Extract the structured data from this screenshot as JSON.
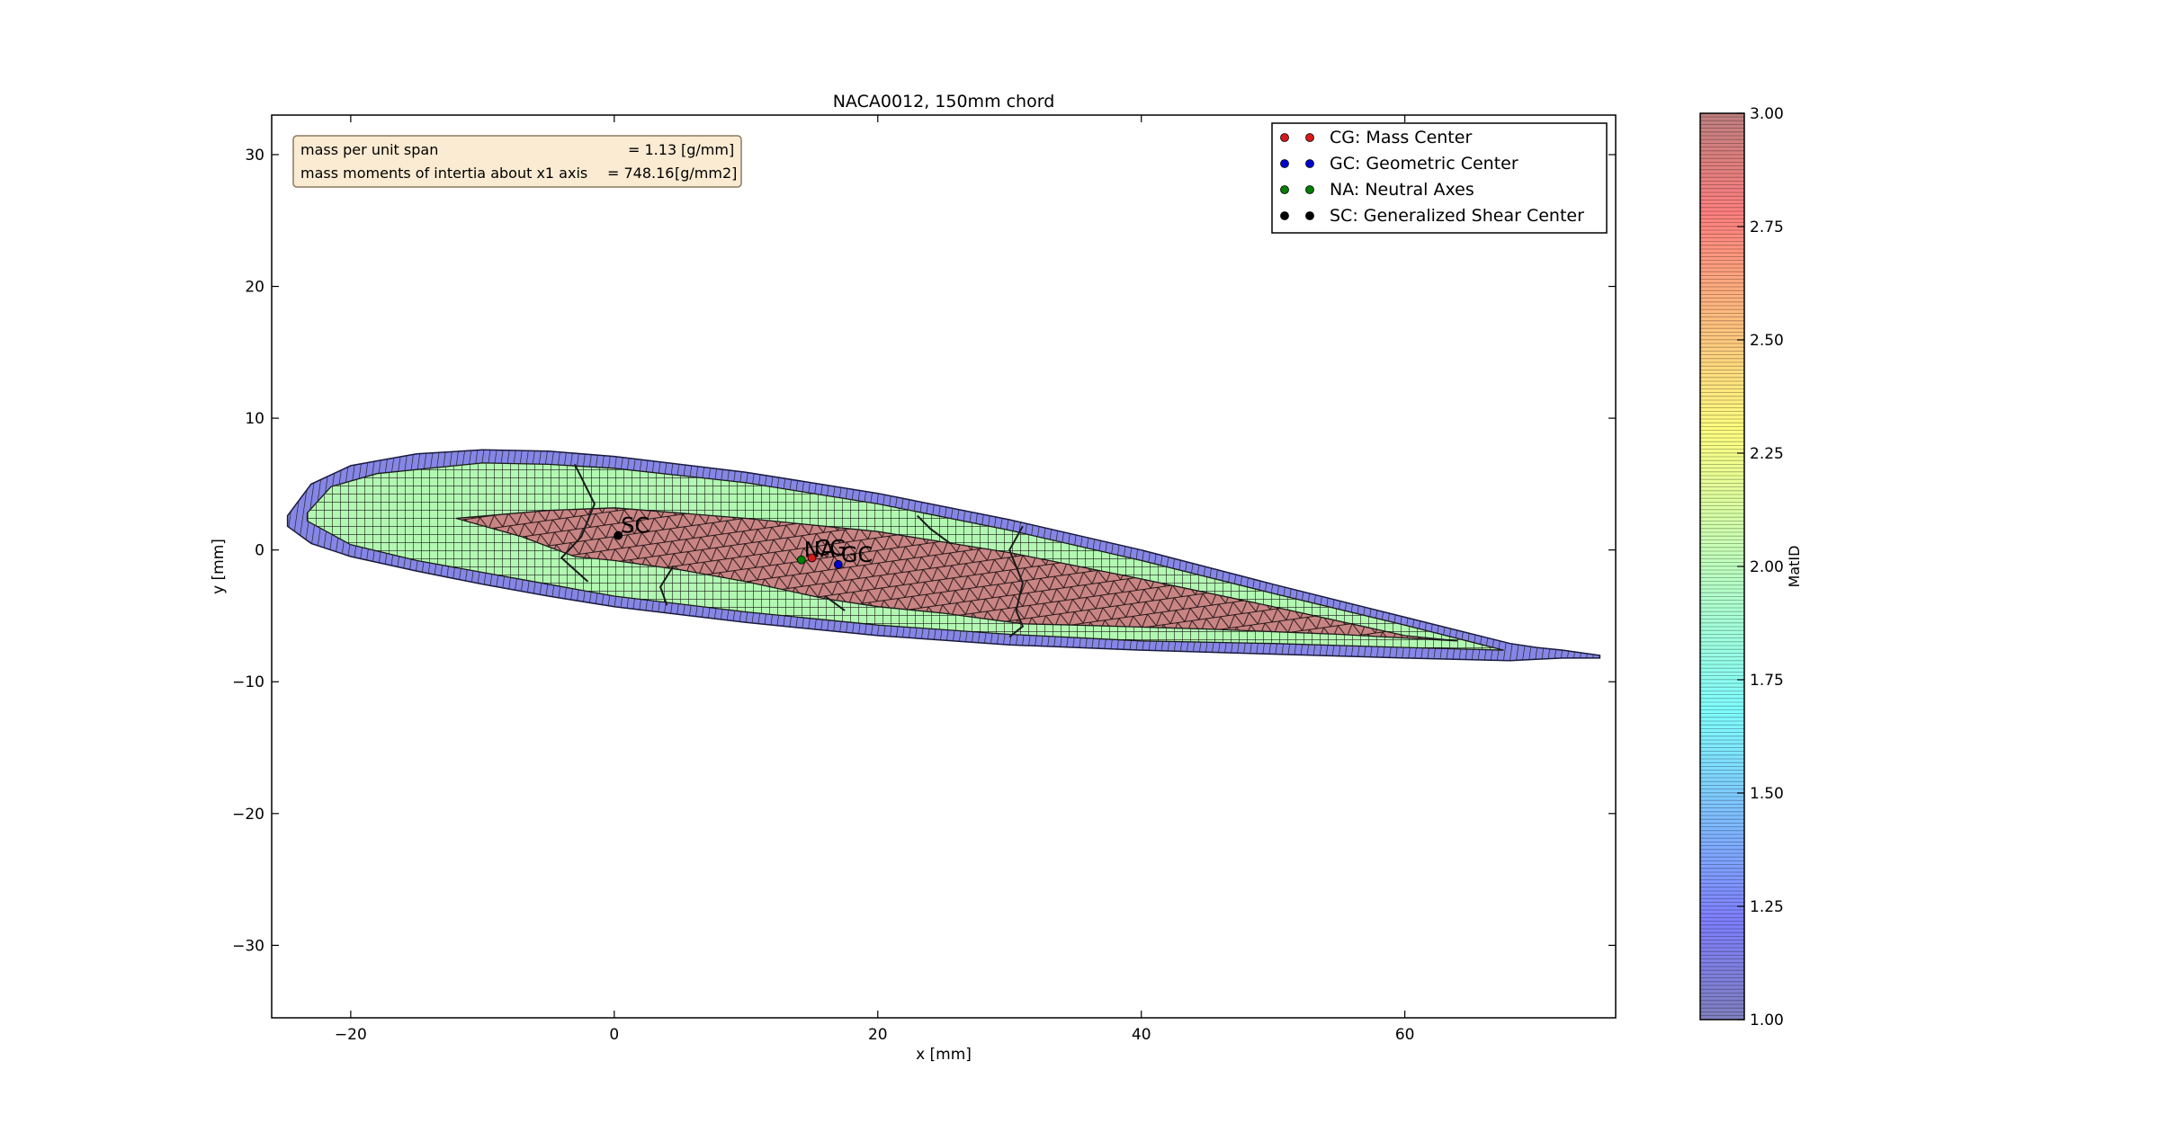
{
  "chart_data": {
    "type": "mesh",
    "title": "NACA0012, 150mm chord",
    "xlabel": "x [mm]",
    "ylabel": "y [mm]",
    "xlim": [
      -26,
      76
    ],
    "ylim": [
      -35.5,
      33
    ],
    "xticks": [
      -20,
      0,
      20,
      40,
      60
    ],
    "yticks": [
      -30,
      -20,
      -10,
      0,
      10,
      20,
      30
    ],
    "xtick_labels": [
      "−20",
      "0",
      "20",
      "40",
      "60"
    ],
    "ytick_labels": [
      "−30",
      "−20",
      "−10",
      "0",
      "10",
      "20",
      "30"
    ],
    "grid": false,
    "regions": {
      "outer_skin": {
        "matid": 1.0,
        "upper": [
          [
            -24.8,
            2.6
          ],
          [
            -23,
            5
          ],
          [
            -20,
            6.4
          ],
          [
            -15,
            7.3
          ],
          [
            -10,
            7.6
          ],
          [
            -5,
            7.5
          ],
          [
            0,
            7.1
          ],
          [
            10,
            5.9
          ],
          [
            20,
            4.3
          ],
          [
            30,
            2.3
          ],
          [
            40,
            0
          ],
          [
            50,
            -2.6
          ],
          [
            60,
            -5.1
          ],
          [
            68,
            -7.1
          ],
          [
            70,
            -7.4
          ],
          [
            72,
            -7.6
          ],
          [
            74.8,
            -8
          ]
        ],
        "lower": [
          [
            74.8,
            -8.2
          ],
          [
            72,
            -8.2
          ],
          [
            70,
            -8.3
          ],
          [
            68,
            -8.4
          ],
          [
            60,
            -8.2
          ],
          [
            50,
            -7.9
          ],
          [
            40,
            -7.6
          ],
          [
            30,
            -7.2
          ],
          [
            20,
            -6.5
          ],
          [
            10,
            -5.5
          ],
          [
            0,
            -4.3
          ],
          [
            -5,
            -3.5
          ],
          [
            -10,
            -2.6
          ],
          [
            -15,
            -1.6
          ],
          [
            -20,
            -0.5
          ],
          [
            -23,
            0.5
          ],
          [
            -24.8,
            1.8
          ]
        ]
      },
      "core": {
        "matid": 2.0,
        "upper": [
          [
            -23.3,
            2.8
          ],
          [
            -21.5,
            4.8
          ],
          [
            -18,
            5.8
          ],
          [
            -10,
            6.6
          ],
          [
            -5,
            6.5
          ],
          [
            0,
            6.2
          ],
          [
            10,
            5.1
          ],
          [
            20,
            3.5
          ],
          [
            30,
            1.5
          ],
          [
            40,
            -0.8
          ],
          [
            50,
            -3.3
          ],
          [
            60,
            -5.7
          ],
          [
            67.5,
            -7.6
          ]
        ],
        "lower": [
          [
            67.5,
            -7.6
          ],
          [
            60,
            -7.4
          ],
          [
            50,
            -7.1
          ],
          [
            40,
            -6.9
          ],
          [
            30,
            -6.4
          ],
          [
            20,
            -5.7
          ],
          [
            10,
            -4.7
          ],
          [
            0,
            -3.5
          ],
          [
            -5,
            -2.6
          ],
          [
            -10,
            -1.7
          ],
          [
            -15,
            -0.8
          ],
          [
            -20,
            0.4
          ],
          [
            -23.3,
            2.2
          ]
        ]
      },
      "spar": {
        "matid": 3.0,
        "upper": [
          [
            -12,
            2.4
          ],
          [
            -5,
            3
          ],
          [
            0,
            3.2
          ],
          [
            10,
            2.4
          ],
          [
            20,
            1.4
          ],
          [
            30,
            -0.2
          ],
          [
            40,
            -2.2
          ],
          [
            50,
            -4.3
          ],
          [
            60,
            -6.5
          ],
          [
            64,
            -6.9
          ]
        ],
        "lower": [
          [
            64,
            -6.9
          ],
          [
            55,
            -6.4
          ],
          [
            45,
            -6
          ],
          [
            35,
            -5.7
          ],
          [
            31,
            -5.6
          ],
          [
            25,
            -4.8
          ],
          [
            20,
            -4.3
          ],
          [
            16,
            -3.7
          ],
          [
            10,
            -2.4
          ],
          [
            5,
            -1.5
          ],
          [
            0,
            -0.8
          ],
          [
            -3,
            -0.5
          ],
          [
            -7,
            1
          ],
          [
            -12,
            2.4
          ]
        ]
      },
      "shear_webs": [
        [
          [
            -3,
            6.5
          ],
          [
            -1.5,
            3.5
          ],
          [
            -2.5,
            1
          ],
          [
            -4,
            -0.6
          ],
          [
            -2,
            -2.4
          ]
        ],
        [
          [
            4.5,
            -1.2
          ],
          [
            3.5,
            -2.8
          ],
          [
            4,
            -4.2
          ]
        ],
        [
          [
            23,
            2.6
          ],
          [
            24,
            1.6
          ],
          [
            25.5,
            0.5
          ]
        ],
        [
          [
            16,
            -3.5
          ],
          [
            17.5,
            -4.6
          ]
        ],
        [
          [
            31,
            1.8
          ],
          [
            30,
            0
          ],
          [
            31,
            -2.5
          ],
          [
            30.5,
            -4.6
          ],
          [
            31,
            -5.8
          ],
          [
            30,
            -6.6
          ]
        ]
      ]
    },
    "points": [
      {
        "name": "CG",
        "x": 15.0,
        "y": -0.6
      },
      {
        "name": "GC",
        "x": 17.0,
        "y": -1.1
      },
      {
        "name": "NA",
        "x": 14.2,
        "y": -0.75
      },
      {
        "name": "SC",
        "x": 0.3,
        "y": 1.1
      }
    ],
    "legend": {
      "placement": "upper right",
      "entries": [
        {
          "label": "CG: Mass Center",
          "color": "#d7191c"
        },
        {
          "label": "GC: Geometric Center",
          "color": "#0000cc"
        },
        {
          "label": "NA: Neutral Axes",
          "color": "#007f00"
        },
        {
          "label": "SC: Generalized Shear Center",
          "color": "#000000"
        }
      ]
    },
    "annotation_box": {
      "placement": "upper left",
      "line1": {
        "label": "mass per unit span",
        "value": "= 1.13",
        "unit": "[g/mm]"
      },
      "line2": {
        "label": "mass moments of intertia about x1 axis",
        "value": "= 748.16",
        "unit": "[g/mm2]"
      }
    },
    "colorbar": {
      "label": "MatID",
      "range": [
        1.0,
        3.0
      ],
      "ticks": [
        1.0,
        1.25,
        1.5,
        1.75,
        2.0,
        2.25,
        2.5,
        2.75,
        3.0
      ],
      "tick_labels": [
        "1.00",
        "1.25",
        "1.50",
        "1.75",
        "2.00",
        "2.25",
        "2.50",
        "2.75",
        "3.00"
      ],
      "colormap": "jet",
      "alpha": 0.5
    }
  }
}
